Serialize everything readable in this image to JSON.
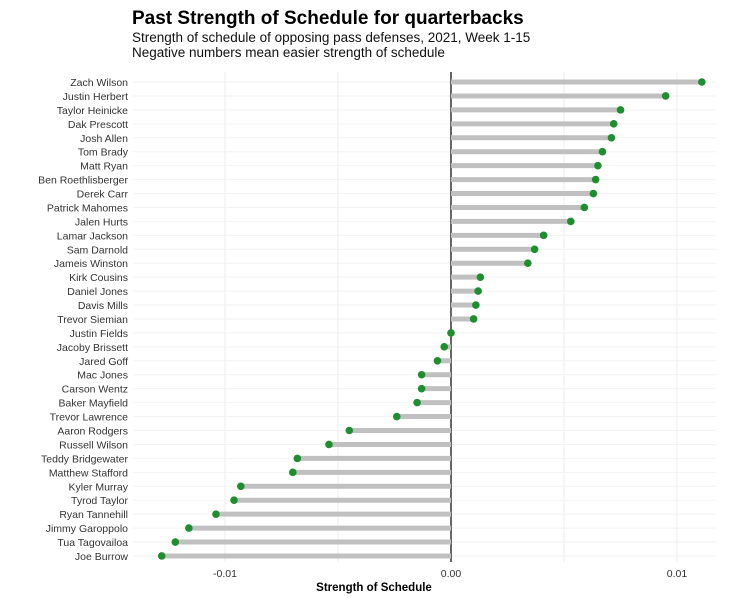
{
  "chart_data": {
    "type": "lollipop",
    "title": "Past Strength of Schedule for quarterbacks",
    "subtitle": "Strength of schedule of opposing pass defenses, 2021, Week 1-15",
    "subtitle2": "Negative numbers mean easier strength of schedule",
    "xlabel": "Strength of Schedule",
    "ylabel": "",
    "xlim": [
      -0.0128,
      0.0123
    ],
    "xticks": [
      -0.01,
      0.0,
      0.01
    ],
    "xtick_labels": [
      "-0.01",
      "0.00",
      "0.01"
    ],
    "grid": true,
    "categories": [
      "Zach Wilson",
      "Justin Herbert",
      "Taylor Heinicke",
      "Dak Prescott",
      "Josh Allen",
      "Tom Brady",
      "Matt Ryan",
      "Ben Roethlisberger",
      "Derek Carr",
      "Patrick Mahomes",
      "Jalen Hurts",
      "Lamar Jackson",
      "Sam Darnold",
      "Jameis Winston",
      "Kirk Cousins",
      "Daniel Jones",
      "Davis Mills",
      "Trevor Siemian",
      "Justin Fields",
      "Jacoby Brissett",
      "Jared Goff",
      "Mac Jones",
      "Carson Wentz",
      "Baker Mayfield",
      "Trevor Lawrence",
      "Aaron Rodgers",
      "Russell Wilson",
      "Teddy Bridgewater",
      "Matthew Stafford",
      "Kyler Murray",
      "Tyrod Taylor",
      "Ryan Tannehill",
      "Jimmy Garoppolo",
      "Tua Tagovailoa",
      "Joe Burrow"
    ],
    "values": [
      0.0111,
      0.0095,
      0.0075,
      0.0072,
      0.0071,
      0.0067,
      0.0065,
      0.0064,
      0.0063,
      0.0059,
      0.0053,
      0.0041,
      0.0037,
      0.0034,
      0.0013,
      0.0012,
      0.0011,
      0.001,
      0.0,
      -0.0003,
      -0.0006,
      -0.0013,
      -0.0013,
      -0.0015,
      -0.0024,
      -0.0045,
      -0.0054,
      -0.0068,
      -0.007,
      -0.0093,
      -0.0096,
      -0.0104,
      -0.0116,
      -0.0122,
      -0.0128
    ],
    "colors": {
      "point": "#1e8f2e",
      "stem": "#c0c0c0",
      "zero_line": "#000000",
      "grid": "#ececec"
    }
  }
}
